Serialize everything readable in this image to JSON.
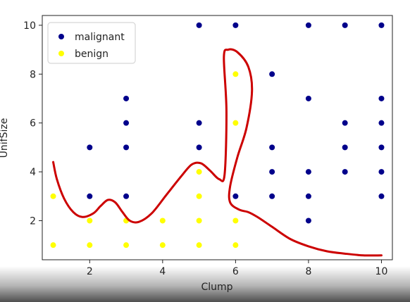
{
  "chart_data": {
    "type": "scatter",
    "xlabel": "Clump",
    "ylabel": "UnifSize",
    "xlim": [
      0.7,
      10.3
    ],
    "ylim": [
      0.4,
      10.4
    ],
    "xticks": [
      2,
      4,
      6,
      8,
      10
    ],
    "yticks": [
      2,
      4,
      6,
      8,
      10
    ],
    "legend": "upper-left",
    "grid": false,
    "series": [
      {
        "name": "malignant",
        "color": "#00008b",
        "points": [
          [
            5,
            10
          ],
          [
            6,
            10
          ],
          [
            8,
            10
          ],
          [
            9,
            10
          ],
          [
            10,
            10
          ],
          [
            7,
            8
          ],
          [
            3,
            7
          ],
          [
            8,
            7
          ],
          [
            10,
            7
          ],
          [
            3,
            6
          ],
          [
            5,
            6
          ],
          [
            9,
            6
          ],
          [
            10,
            6
          ],
          [
            2,
            5
          ],
          [
            3,
            5
          ],
          [
            5,
            5
          ],
          [
            7,
            5
          ],
          [
            9,
            5
          ],
          [
            10,
            5
          ],
          [
            7,
            4
          ],
          [
            8,
            4
          ],
          [
            9,
            4
          ],
          [
            10,
            4
          ],
          [
            2,
            3
          ],
          [
            3,
            3
          ],
          [
            6,
            3
          ],
          [
            7,
            3
          ],
          [
            8,
            3
          ],
          [
            10,
            3
          ],
          [
            8,
            2
          ]
        ]
      },
      {
        "name": "benign",
        "color": "#ffff00",
        "points": [
          [
            6,
            8
          ],
          [
            6,
            6
          ],
          [
            5,
            4
          ],
          [
            1,
            3
          ],
          [
            5,
            3
          ],
          [
            2,
            2
          ],
          [
            3,
            2
          ],
          [
            4,
            2
          ],
          [
            5,
            2
          ],
          [
            6,
            2
          ],
          [
            1,
            1
          ],
          [
            2,
            1
          ],
          [
            3,
            1
          ],
          [
            4,
            1
          ],
          [
            5,
            1
          ],
          [
            6,
            1
          ]
        ]
      }
    ],
    "boundary": {
      "color": "#cc0000",
      "points": [
        [
          1.0,
          4.4
        ],
        [
          1.1,
          3.7
        ],
        [
          1.3,
          2.9
        ],
        [
          1.55,
          2.35
        ],
        [
          1.8,
          2.15
        ],
        [
          2.1,
          2.3
        ],
        [
          2.3,
          2.6
        ],
        [
          2.5,
          2.85
        ],
        [
          2.7,
          2.75
        ],
        [
          2.9,
          2.35
        ],
        [
          3.1,
          2.0
        ],
        [
          3.35,
          1.95
        ],
        [
          3.7,
          2.3
        ],
        [
          4.1,
          3.05
        ],
        [
          4.5,
          3.8
        ],
        [
          4.8,
          4.3
        ],
        [
          5.05,
          4.35
        ],
        [
          5.3,
          4.05
        ],
        [
          5.55,
          3.7
        ],
        [
          5.7,
          3.9
        ],
        [
          5.75,
          6.5
        ],
        [
          5.68,
          8.7
        ],
        [
          5.8,
          9.0
        ],
        [
          6.05,
          8.9
        ],
        [
          6.35,
          8.3
        ],
        [
          6.45,
          7.3
        ],
        [
          6.3,
          5.8
        ],
        [
          6.05,
          4.6
        ],
        [
          5.85,
          3.4
        ],
        [
          5.85,
          2.75
        ],
        [
          6.1,
          2.45
        ],
        [
          6.35,
          2.35
        ],
        [
          6.6,
          2.15
        ],
        [
          7.0,
          1.75
        ],
        [
          7.5,
          1.25
        ],
        [
          8.0,
          0.95
        ],
        [
          8.5,
          0.75
        ],
        [
          9.0,
          0.65
        ],
        [
          9.5,
          0.58
        ],
        [
          10.0,
          0.58
        ]
      ]
    }
  }
}
